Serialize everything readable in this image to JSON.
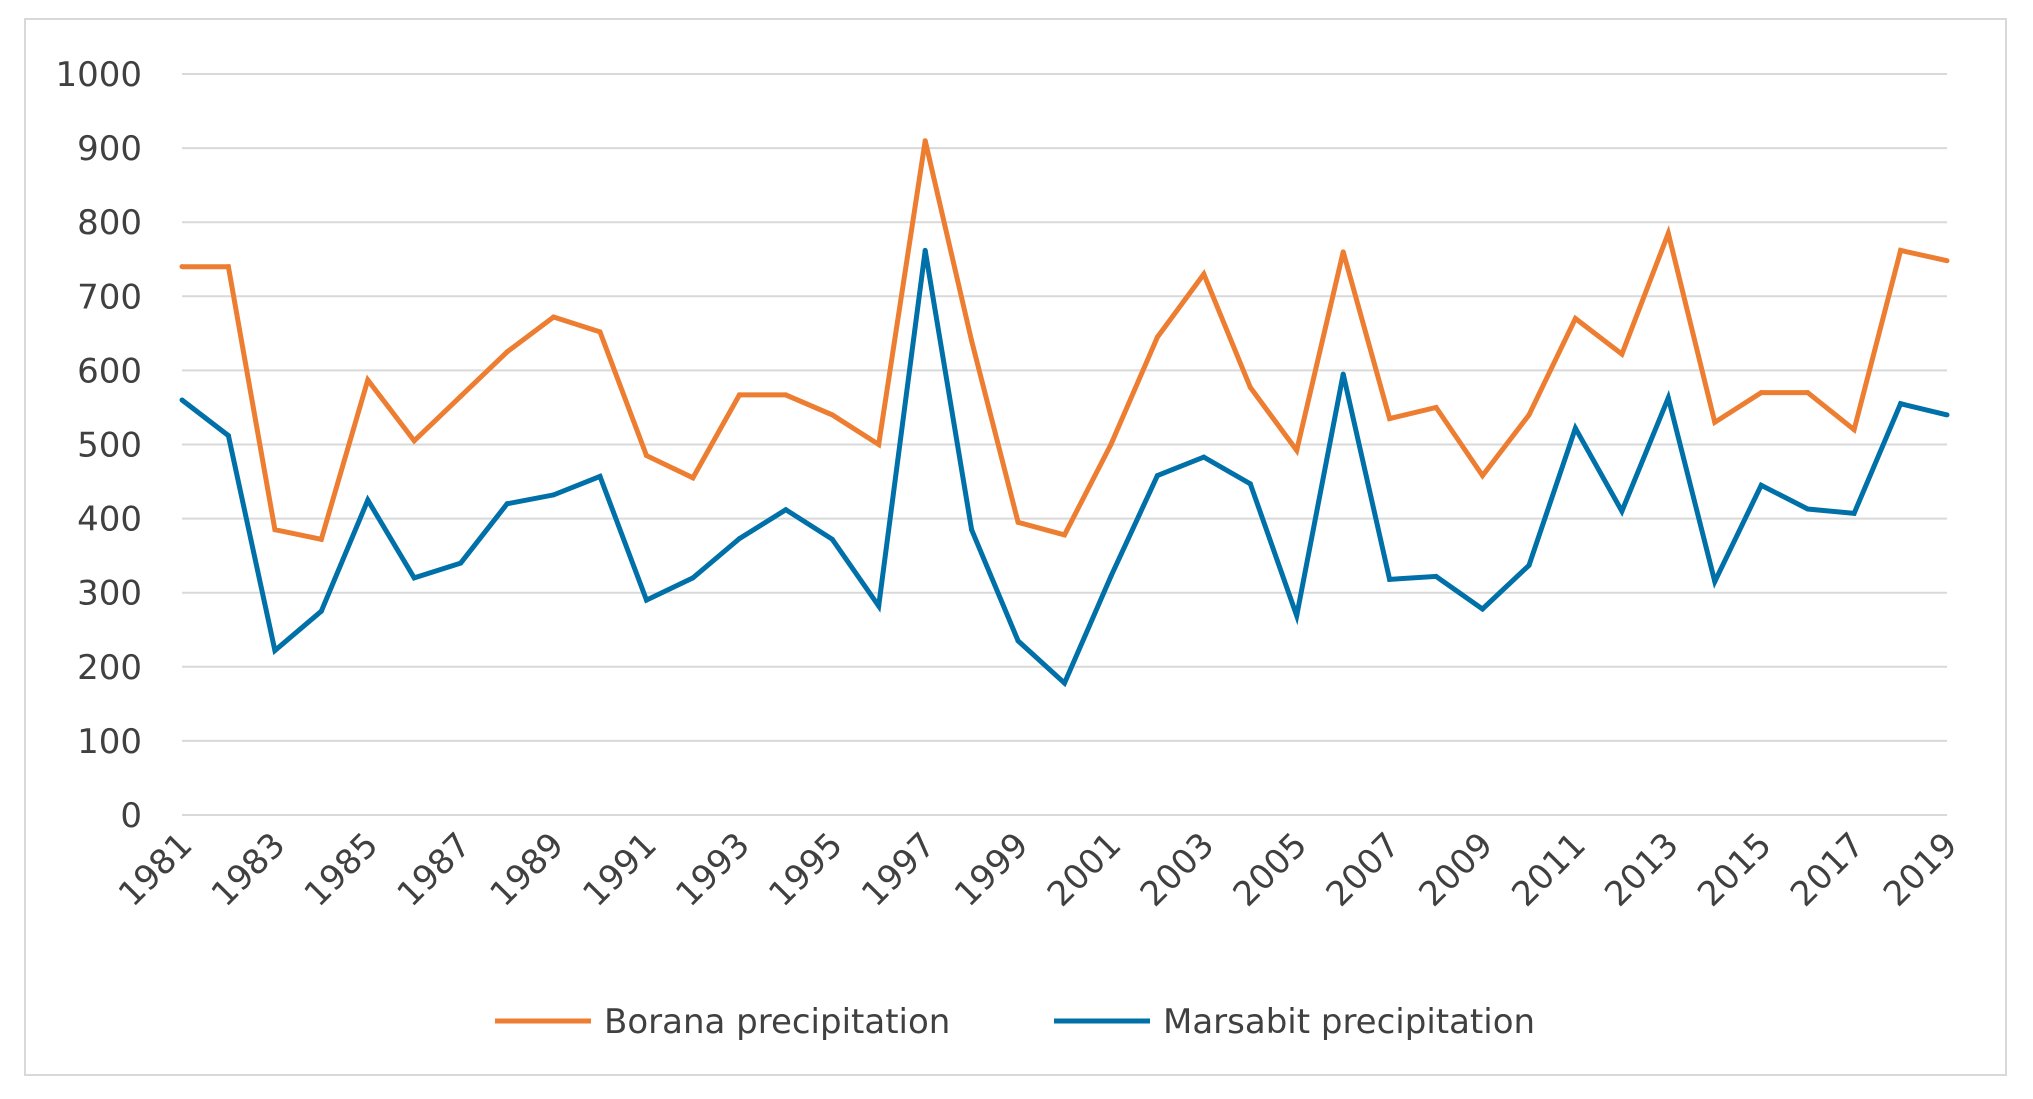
{
  "chart_data": {
    "type": "line",
    "title": "",
    "xlabel": "",
    "ylabel": "",
    "ylim": [
      0,
      1000
    ],
    "y_ticks": [
      0,
      100,
      200,
      300,
      400,
      500,
      600,
      700,
      800,
      900,
      1000
    ],
    "grid": true,
    "legend_position": "bottom",
    "x": [
      1981,
      1982,
      1983,
      1984,
      1985,
      1986,
      1987,
      1988,
      1989,
      1990,
      1991,
      1992,
      1993,
      1994,
      1995,
      1996,
      1997,
      1998,
      1999,
      2000,
      2001,
      2002,
      2003,
      2004,
      2005,
      2006,
      2007,
      2008,
      2009,
      2010,
      2011,
      2012,
      2013,
      2014,
      2015,
      2016,
      2017,
      2018,
      2019
    ],
    "x_tick_labels": [
      "1981",
      "1983",
      "1985",
      "1987",
      "1989",
      "1991",
      "1993",
      "1995",
      "1997",
      "1999",
      "2001",
      "2003",
      "2005",
      "2007",
      "2009",
      "2011",
      "2013",
      "2015",
      "2017",
      "2019"
    ],
    "series": [
      {
        "name": "Borana precipitation",
        "color": "#ed7d31",
        "values": [
          740,
          740,
          385,
          372,
          587,
          505,
          565,
          625,
          672,
          652,
          485,
          455,
          567,
          567,
          540,
          500,
          910,
          640,
          395,
          378,
          500,
          645,
          730,
          577,
          492,
          760,
          535,
          550,
          458,
          540,
          670,
          622,
          785,
          530,
          570,
          570,
          520,
          762,
          748
        ]
      },
      {
        "name": "Marsabit precipitation",
        "color": "#0070a8",
        "values": [
          560,
          512,
          222,
          275,
          425,
          320,
          340,
          420,
          432,
          457,
          290,
          320,
          373,
          412,
          372,
          282,
          762,
          385,
          235,
          178,
          322,
          458,
          483,
          447,
          269,
          595,
          318,
          322,
          278,
          337,
          522,
          410,
          563,
          315,
          445,
          413,
          407,
          555,
          540
        ]
      }
    ]
  }
}
